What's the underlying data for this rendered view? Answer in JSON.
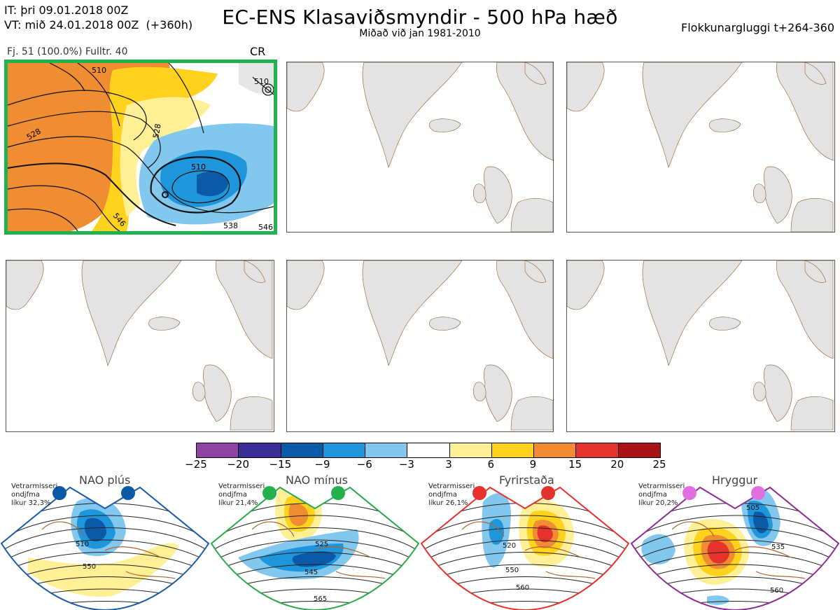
{
  "header": {
    "left_line1": "IT: þri 09.01.2018 00Z",
    "left_line2": "VT: mið 24.01.2018 00Z  (+360h)",
    "title": "EC-ENS Klasaviðsmyndir - 500 hPa hæð",
    "subtitle": "Miðað við jan 1981-2010",
    "right": "Flokkunargluggi t+264-360"
  },
  "active_panel": {
    "caption": "Fj. 51 (100.0%)   Fulltr. 40",
    "tag": "CR",
    "contour_labels": [
      "510",
      "528",
      "528",
      "510",
      "546",
      "538",
      "546",
      "510"
    ]
  },
  "colorbar": {
    "ticks": [
      "−25",
      "−20",
      "−15",
      "−9",
      "−6",
      "−3",
      "3",
      "6",
      "9",
      "15",
      "20",
      "25"
    ],
    "colors": [
      "#8e44a0",
      "#3c2c96",
      "#0a5aa8",
      "#1f96dc",
      "#82c8ee",
      "#ffffff",
      "#fff096",
      "#ffd21e",
      "#f08c32",
      "#e6322d",
      "#aa1419"
    ]
  },
  "regimes": [
    {
      "name": "NAO plús",
      "note": "Vetrarmisseri\nondjfma\nlíkur 32,3%",
      "color": "#1a5aa8",
      "dot_color": "#0a5aa8",
      "labels": [
        "510",
        "550"
      ]
    },
    {
      "name": "NAO mínus",
      "note": "Vetrarmisseri\nondjfma\nlíkur 21,4%",
      "color": "#2aa84a",
      "dot_color": "#22b14c",
      "labels": [
        "525",
        "545",
        "565"
      ]
    },
    {
      "name": "Fyrirstaða",
      "note": "Vetrarmisseri\nondjfma\nlíkur 26,1%",
      "color": "#e6322d",
      "dot_color": "#e6322d",
      "labels": [
        "520",
        "550",
        "560"
      ]
    },
    {
      "name": "Hryggur",
      "note": "Vetrarmisseri\nondjfma\nlíkur 20,2%",
      "color": "#8e2a96",
      "dot_color": "#e070e0",
      "labels": [
        "505",
        "535",
        "560"
      ]
    }
  ]
}
